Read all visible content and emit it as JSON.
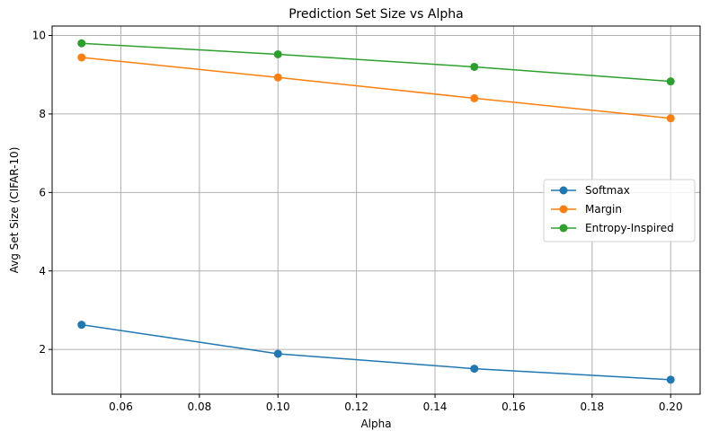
{
  "chart_data": {
    "type": "line",
    "title": "Prediction Set Size vs Alpha",
    "xlabel": "Alpha",
    "ylabel": "Avg Set Size (CIFAR-10)",
    "x": [
      0.05,
      0.1,
      0.15,
      0.2
    ],
    "xlim": [
      0.0425,
      0.2075
    ],
    "ylim": [
      0.86,
      10.24
    ],
    "xticks": [
      "0.06",
      "0.08",
      "0.10",
      "0.12",
      "0.14",
      "0.16",
      "0.18",
      "0.20"
    ],
    "yticks": [
      "2",
      "4",
      "6",
      "8",
      "10"
    ],
    "grid": true,
    "legend_position": "center-right",
    "series": [
      {
        "name": "Softmax",
        "color": "#1f77b4",
        "values": [
          2.63,
          1.89,
          1.51,
          1.23
        ]
      },
      {
        "name": "Margin",
        "color": "#ff7f0e",
        "values": [
          9.44,
          8.93,
          8.4,
          7.89
        ]
      },
      {
        "name": "Entropy-Inspired",
        "color": "#2ca02c",
        "values": [
          9.8,
          9.52,
          9.2,
          8.83
        ]
      }
    ]
  }
}
